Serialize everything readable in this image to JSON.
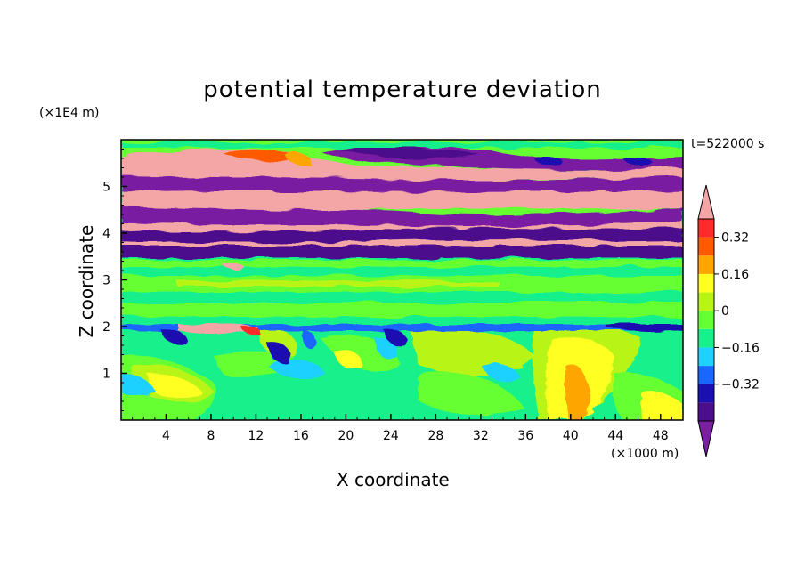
{
  "chart_data": {
    "type": "heatmap",
    "title": "potential temperature deviation",
    "xlabel": "X coordinate",
    "ylabel": "Z coordinate",
    "x_unit": "(×1000 m)",
    "y_unit": "(×1E4 m)",
    "annotation": "t=522000 s",
    "xlim": [
      0,
      50
    ],
    "ylim": [
      0,
      6
    ],
    "x_ticks": [
      4,
      8,
      12,
      16,
      20,
      24,
      28,
      32,
      36,
      40,
      44,
      48
    ],
    "y_ticks": [
      1,
      2,
      3,
      4,
      5
    ],
    "colorbar": {
      "levels": [
        -0.48,
        -0.4,
        -0.32,
        -0.24,
        -0.16,
        -0.08,
        0,
        0.08,
        0.16,
        0.24,
        0.32,
        0.4
      ],
      "labels": [
        "0.32",
        "0.16",
        "0",
        "−0.16",
        "−0.32"
      ],
      "label_values": [
        0.32,
        0.16,
        0,
        -0.16,
        -0.32
      ],
      "colors": [
        "#7a1fa2",
        "#4b0f8c",
        "#1a0fb0",
        "#1a66ff",
        "#1fd1ff",
        "#18f08c",
        "#66ff33",
        "#b8f516",
        "#ffff22",
        "#ffa500",
        "#ff5a00",
        "#ff2a2a",
        "#f4a6a6"
      ],
      "extend": "both"
    }
  }
}
